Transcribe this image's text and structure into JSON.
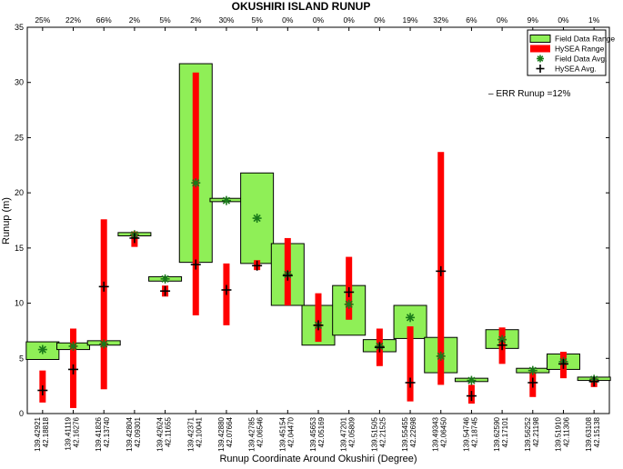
{
  "chart_data": {
    "type": "bar",
    "title": "OKUSHIRI ISLAND RUNUP",
    "xlabel": "Runup Coordinate Around Okushiri (Degree)",
    "ylabel": "Runup (m)",
    "ylim": [
      0,
      35
    ],
    "yticks": [
      0,
      5,
      10,
      15,
      20,
      25,
      30,
      35
    ],
    "grid": false,
    "legend_position": "top-right",
    "annotation": "– ERR Runup =12%",
    "colors": {
      "field": "#8fef57",
      "hysea": "#ff0000",
      "field_avg": "#1a7a1a",
      "hysea_avg": "#000000"
    },
    "legend": [
      {
        "label": "Field Data Range",
        "kind": "field-range"
      },
      {
        "label": "HySEA Range",
        "kind": "hysea-range"
      },
      {
        "label": "Field Data Avg.",
        "kind": "field-avg"
      },
      {
        "label": "HySEA Avg.",
        "kind": "hysea-avg"
      }
    ],
    "points": [
      {
        "lon": "139.42921",
        "lat": "42.18818",
        "err": "25%",
        "field_min": 4.9,
        "field_max": 6.5,
        "field_avg": 5.8,
        "hysea_min": 1.0,
        "hysea_max": 3.9,
        "hysea_avg": 2.1
      },
      {
        "lon": "139.41119",
        "lat": "42.16276",
        "err": "22%",
        "field_min": 5.8,
        "field_max": 6.4,
        "field_avg": 6.1,
        "hysea_min": 0.5,
        "hysea_max": 7.7,
        "hysea_avg": 4.0
      },
      {
        "lon": "139.41826",
        "lat": "42.13740",
        "err": "66%",
        "field_min": 6.2,
        "field_max": 6.6,
        "field_avg": 6.3,
        "hysea_min": 2.2,
        "hysea_max": 17.6,
        "hysea_avg": 11.5
      },
      {
        "lon": "139.42804",
        "lat": "42.09301",
        "err": "2%",
        "field_min": 16.1,
        "field_max": 16.4,
        "field_avg": 16.2,
        "hysea_min": 15.1,
        "hysea_max": 16.5,
        "hysea_avg": 15.9
      },
      {
        "lon": "139.42624",
        "lat": "42.11655",
        "err": "5%",
        "field_min": 12.0,
        "field_max": 12.4,
        "field_avg": 12.2,
        "hysea_min": 10.6,
        "hysea_max": 11.6,
        "hysea_avg": 11.1
      },
      {
        "lon": "139.42371",
        "lat": "42.10041",
        "err": "2%",
        "field_min": 13.7,
        "field_max": 31.7,
        "field_avg": 20.9,
        "hysea_min": 8.9,
        "hysea_max": 30.9,
        "hysea_avg": 13.5
      },
      {
        "lon": "139.42880",
        "lat": "42.07664",
        "err": "30%",
        "field_min": 19.2,
        "field_max": 19.5,
        "field_avg": 19.3,
        "hysea_min": 8.0,
        "hysea_max": 13.6,
        "hysea_avg": 11.2
      },
      {
        "lon": "139.42785",
        "lat": "42.06546",
        "err": "5%",
        "field_min": 13.6,
        "field_max": 21.8,
        "field_avg": 17.7,
        "hysea_min": 13.0,
        "hysea_max": 13.9,
        "hysea_avg": 13.4
      },
      {
        "lon": "139.45154",
        "lat": "42.04470",
        "err": "0%",
        "field_min": 9.8,
        "field_max": 15.4,
        "field_avg": 12.6,
        "hysea_min": 9.8,
        "hysea_max": 15.9,
        "hysea_avg": 12.5
      },
      {
        "lon": "139.45653",
        "lat": "42.05169",
        "err": "0%",
        "field_min": 6.2,
        "field_max": 9.8,
        "field_avg": 8.0,
        "hysea_min": 6.5,
        "hysea_max": 10.9,
        "hysea_avg": 8.0
      },
      {
        "lon": "139.47201",
        "lat": "42.05809",
        "err": "0%",
        "field_min": 7.1,
        "field_max": 11.6,
        "field_avg": 9.9,
        "hysea_min": 8.5,
        "hysea_max": 14.2,
        "hysea_avg": 11.0
      },
      {
        "lon": "139.51505",
        "lat": "42.21525",
        "err": "0%",
        "field_min": 5.6,
        "field_max": 6.7,
        "field_avg": 6.1,
        "hysea_min": 4.3,
        "hysea_max": 7.7,
        "hysea_avg": 6.0
      },
      {
        "lon": "139.55455",
        "lat": "42.22698",
        "err": "19%",
        "field_min": 6.8,
        "field_max": 9.8,
        "field_avg": 8.7,
        "hysea_min": 1.1,
        "hysea_max": 7.9,
        "hysea_avg": 2.8
      },
      {
        "lon": "139.49343",
        "lat": "42.06450",
        "err": "32%",
        "field_min": 3.7,
        "field_max": 6.9,
        "field_avg": 5.2,
        "hysea_min": 2.6,
        "hysea_max": 23.7,
        "hysea_avg": 12.9
      },
      {
        "lon": "139.54746",
        "lat": "42.18745",
        "err": "6%",
        "field_min": 2.9,
        "field_max": 3.2,
        "field_avg": 3.0,
        "hysea_min": 0.9,
        "hysea_max": 2.6,
        "hysea_avg": 1.6
      },
      {
        "lon": "139.62590",
        "lat": "42.17101",
        "err": "0%",
        "field_min": 5.9,
        "field_max": 7.6,
        "field_avg": 6.7,
        "hysea_min": 4.5,
        "hysea_max": 7.8,
        "hysea_avg": 6.2
      },
      {
        "lon": "139.56252",
        "lat": "42.21198",
        "err": "9%",
        "field_min": 3.7,
        "field_max": 4.1,
        "field_avg": 3.9,
        "hysea_min": 1.5,
        "hysea_max": 3.8,
        "hysea_avg": 2.8
      },
      {
        "lon": "139.51910",
        "lat": "42.11306",
        "err": "0%",
        "field_min": 4.0,
        "field_max": 5.4,
        "field_avg": 4.7,
        "hysea_min": 3.2,
        "hysea_max": 5.6,
        "hysea_avg": 4.5
      },
      {
        "lon": "139.63108",
        "lat": "42.15138",
        "err": "1%",
        "field_min": 3.0,
        "field_max": 3.3,
        "field_avg": 3.1,
        "hysea_min": 2.4,
        "hysea_max": 3.2,
        "hysea_avg": 2.9
      }
    ]
  }
}
